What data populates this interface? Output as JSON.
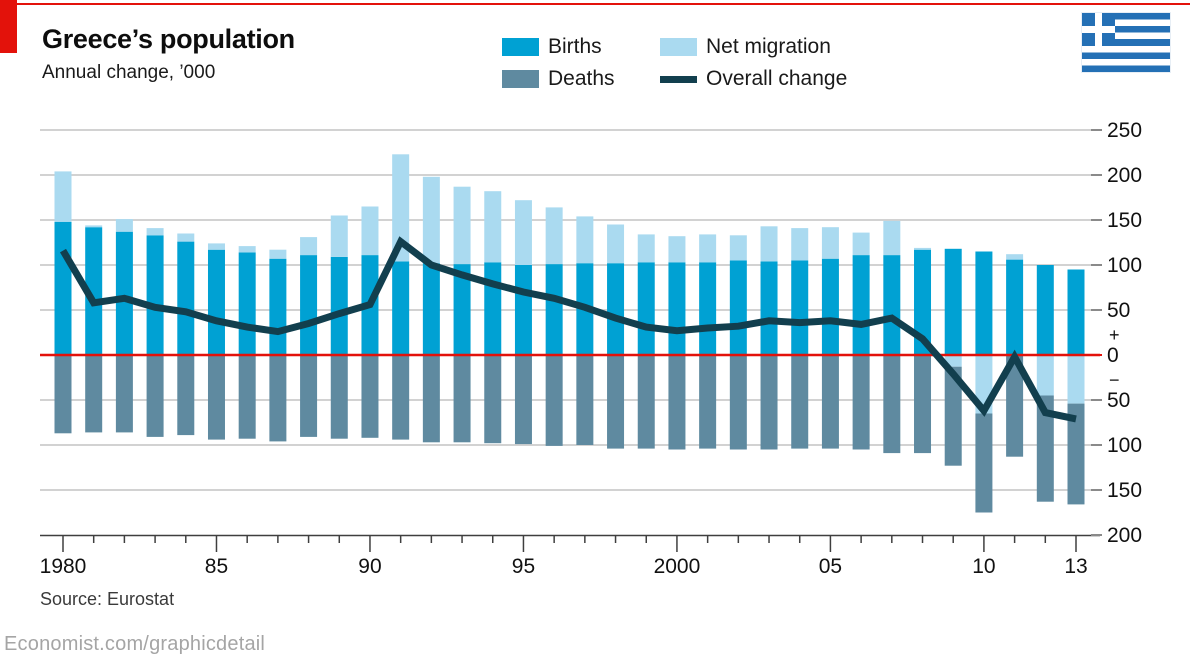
{
  "header": {
    "title": "Greece’s population",
    "subtitle": "Annual change, ’000"
  },
  "legend": {
    "births_label": "Births",
    "deaths_label": "Deaths",
    "net_migration_label": "Net migration",
    "overall_change_label": "Overall change"
  },
  "flag": {
    "name": "greece-flag",
    "blue": "#2470b5",
    "white": "#ffffff"
  },
  "colors": {
    "brand_red": "#e3120b",
    "zero_line": "#e3120b",
    "births": "#00a1d3",
    "net_migration": "#aadaf0",
    "deaths": "#5f8aa0",
    "overall_line": "#123f4e",
    "gridline": "#c4c4c4",
    "axis": "#3f3f3f",
    "tick_stub": "#8a8a8a",
    "label_text": "#111111"
  },
  "chart_data": {
    "type": "bar",
    "title": "Greece’s population",
    "subtitle": "Annual change, ’000",
    "ylim": [
      -200,
      250
    ],
    "grid": true,
    "legend_position": "top",
    "years": [
      1980,
      1981,
      1982,
      1983,
      1984,
      1985,
      1986,
      1987,
      1988,
      1989,
      1990,
      1991,
      1992,
      1993,
      1994,
      1995,
      1996,
      1997,
      1998,
      1999,
      2000,
      2001,
      2002,
      2003,
      2004,
      2005,
      2006,
      2007,
      2008,
      2009,
      2010,
      2011,
      2012,
      2013
    ],
    "series": [
      {
        "name": "Births",
        "type": "bar",
        "color": "#00a1d3",
        "values": [
          148,
          142,
          137,
          133,
          126,
          117,
          114,
          107,
          111,
          109,
          111,
          104,
          102,
          101,
          103,
          100,
          101,
          102,
          102,
          103,
          103,
          103,
          105,
          104,
          105,
          107,
          111,
          111,
          117,
          118,
          115,
          106,
          100,
          95
        ]
      },
      {
        "name": "Deaths",
        "type": "bar",
        "color": "#5f8aa0",
        "plotted_below_zero": true,
        "values": [
          87,
          86,
          86,
          91,
          89,
          94,
          93,
          96,
          91,
          93,
          92,
          94,
          97,
          97,
          98,
          99,
          101,
          100,
          104,
          104,
          105,
          104,
          105,
          105,
          104,
          104,
          105,
          109,
          109,
          110,
          110,
          113,
          118,
          112
        ]
      },
      {
        "name": "Net migration",
        "type": "bar",
        "color": "#aadaf0",
        "values": [
          56,
          2,
          14,
          8,
          9,
          7,
          7,
          10,
          20,
          46,
          54,
          119,
          96,
          86,
          79,
          72,
          63,
          52,
          43,
          31,
          29,
          31,
          28,
          39,
          36,
          35,
          25,
          38,
          2,
          -13,
          -65,
          6,
          -45,
          -54
        ]
      },
      {
        "name": "Overall change",
        "type": "line",
        "color": "#123f4e",
        "values": [
          116,
          58,
          63,
          53,
          48,
          38,
          31,
          26,
          35,
          46,
          56,
          126,
          100,
          89,
          79,
          70,
          63,
          53,
          41,
          31,
          27,
          30,
          32,
          38,
          36,
          38,
          34,
          41,
          18,
          -21,
          -62,
          -2,
          -64,
          -71
        ]
      }
    ],
    "x_axis": {
      "labels": [
        {
          "text": "1980",
          "year": 1980
        },
        {
          "text": "85",
          "year": 1985
        },
        {
          "text": "90",
          "year": 1990
        },
        {
          "text": "95",
          "year": 1995
        },
        {
          "text": "2000",
          "year": 2000
        },
        {
          "text": "05",
          "year": 2005
        },
        {
          "text": "10",
          "year": 2010
        },
        {
          "text": "13",
          "year": 2013
        }
      ]
    },
    "y_axis": {
      "ticks": [
        {
          "value": 250,
          "label": "250"
        },
        {
          "value": 200,
          "label": "200"
        },
        {
          "value": 150,
          "label": "150"
        },
        {
          "value": 100,
          "label": "100"
        },
        {
          "value": 50,
          "label": "50"
        },
        {
          "value": 0,
          "label": "0"
        },
        {
          "value": -50,
          "label": "50"
        },
        {
          "value": -100,
          "label": "100"
        },
        {
          "value": -150,
          "label": "150"
        },
        {
          "value": -200,
          "label": "200"
        }
      ],
      "plus_label": "+",
      "minus_label": "−"
    }
  },
  "source": "Source: Eurostat",
  "footer": "Economist.com/graphicdetail"
}
